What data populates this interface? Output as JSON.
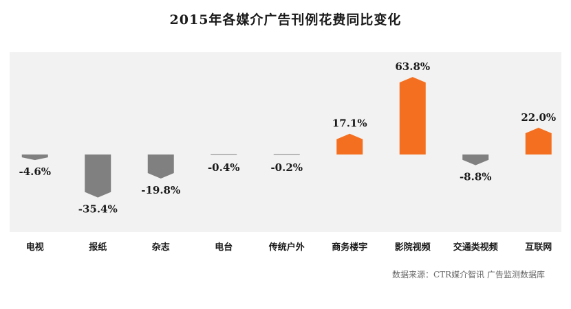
{
  "chart_data": {
    "type": "bar",
    "title": "2015年各媒介广告刊例花费同比变化",
    "xlabel": "",
    "ylabel": "",
    "categories": [
      "电视",
      "报纸",
      "杂志",
      "电台",
      "传统户外",
      "商务楼宇",
      "影院视频",
      "交通类视频",
      "互联网"
    ],
    "values": [
      -4.6,
      -35.4,
      -19.8,
      -0.4,
      -0.2,
      17.1,
      63.8,
      -8.8,
      22.0
    ],
    "labels": [
      "-4.6%",
      "-35.4%",
      "-19.8%",
      "-0.4%",
      "-0.2%",
      "17.1%",
      "63.8%",
      "-8.8%",
      "22.0%"
    ],
    "ylim": [
      -40,
      70
    ],
    "grid": false,
    "legend": "none",
    "colors": {
      "positive": "#f47020",
      "negative": "#808080",
      "plot_background": "#f2f2f2"
    }
  },
  "source": "数据来源：CTR媒介智讯 广告监测数据库"
}
